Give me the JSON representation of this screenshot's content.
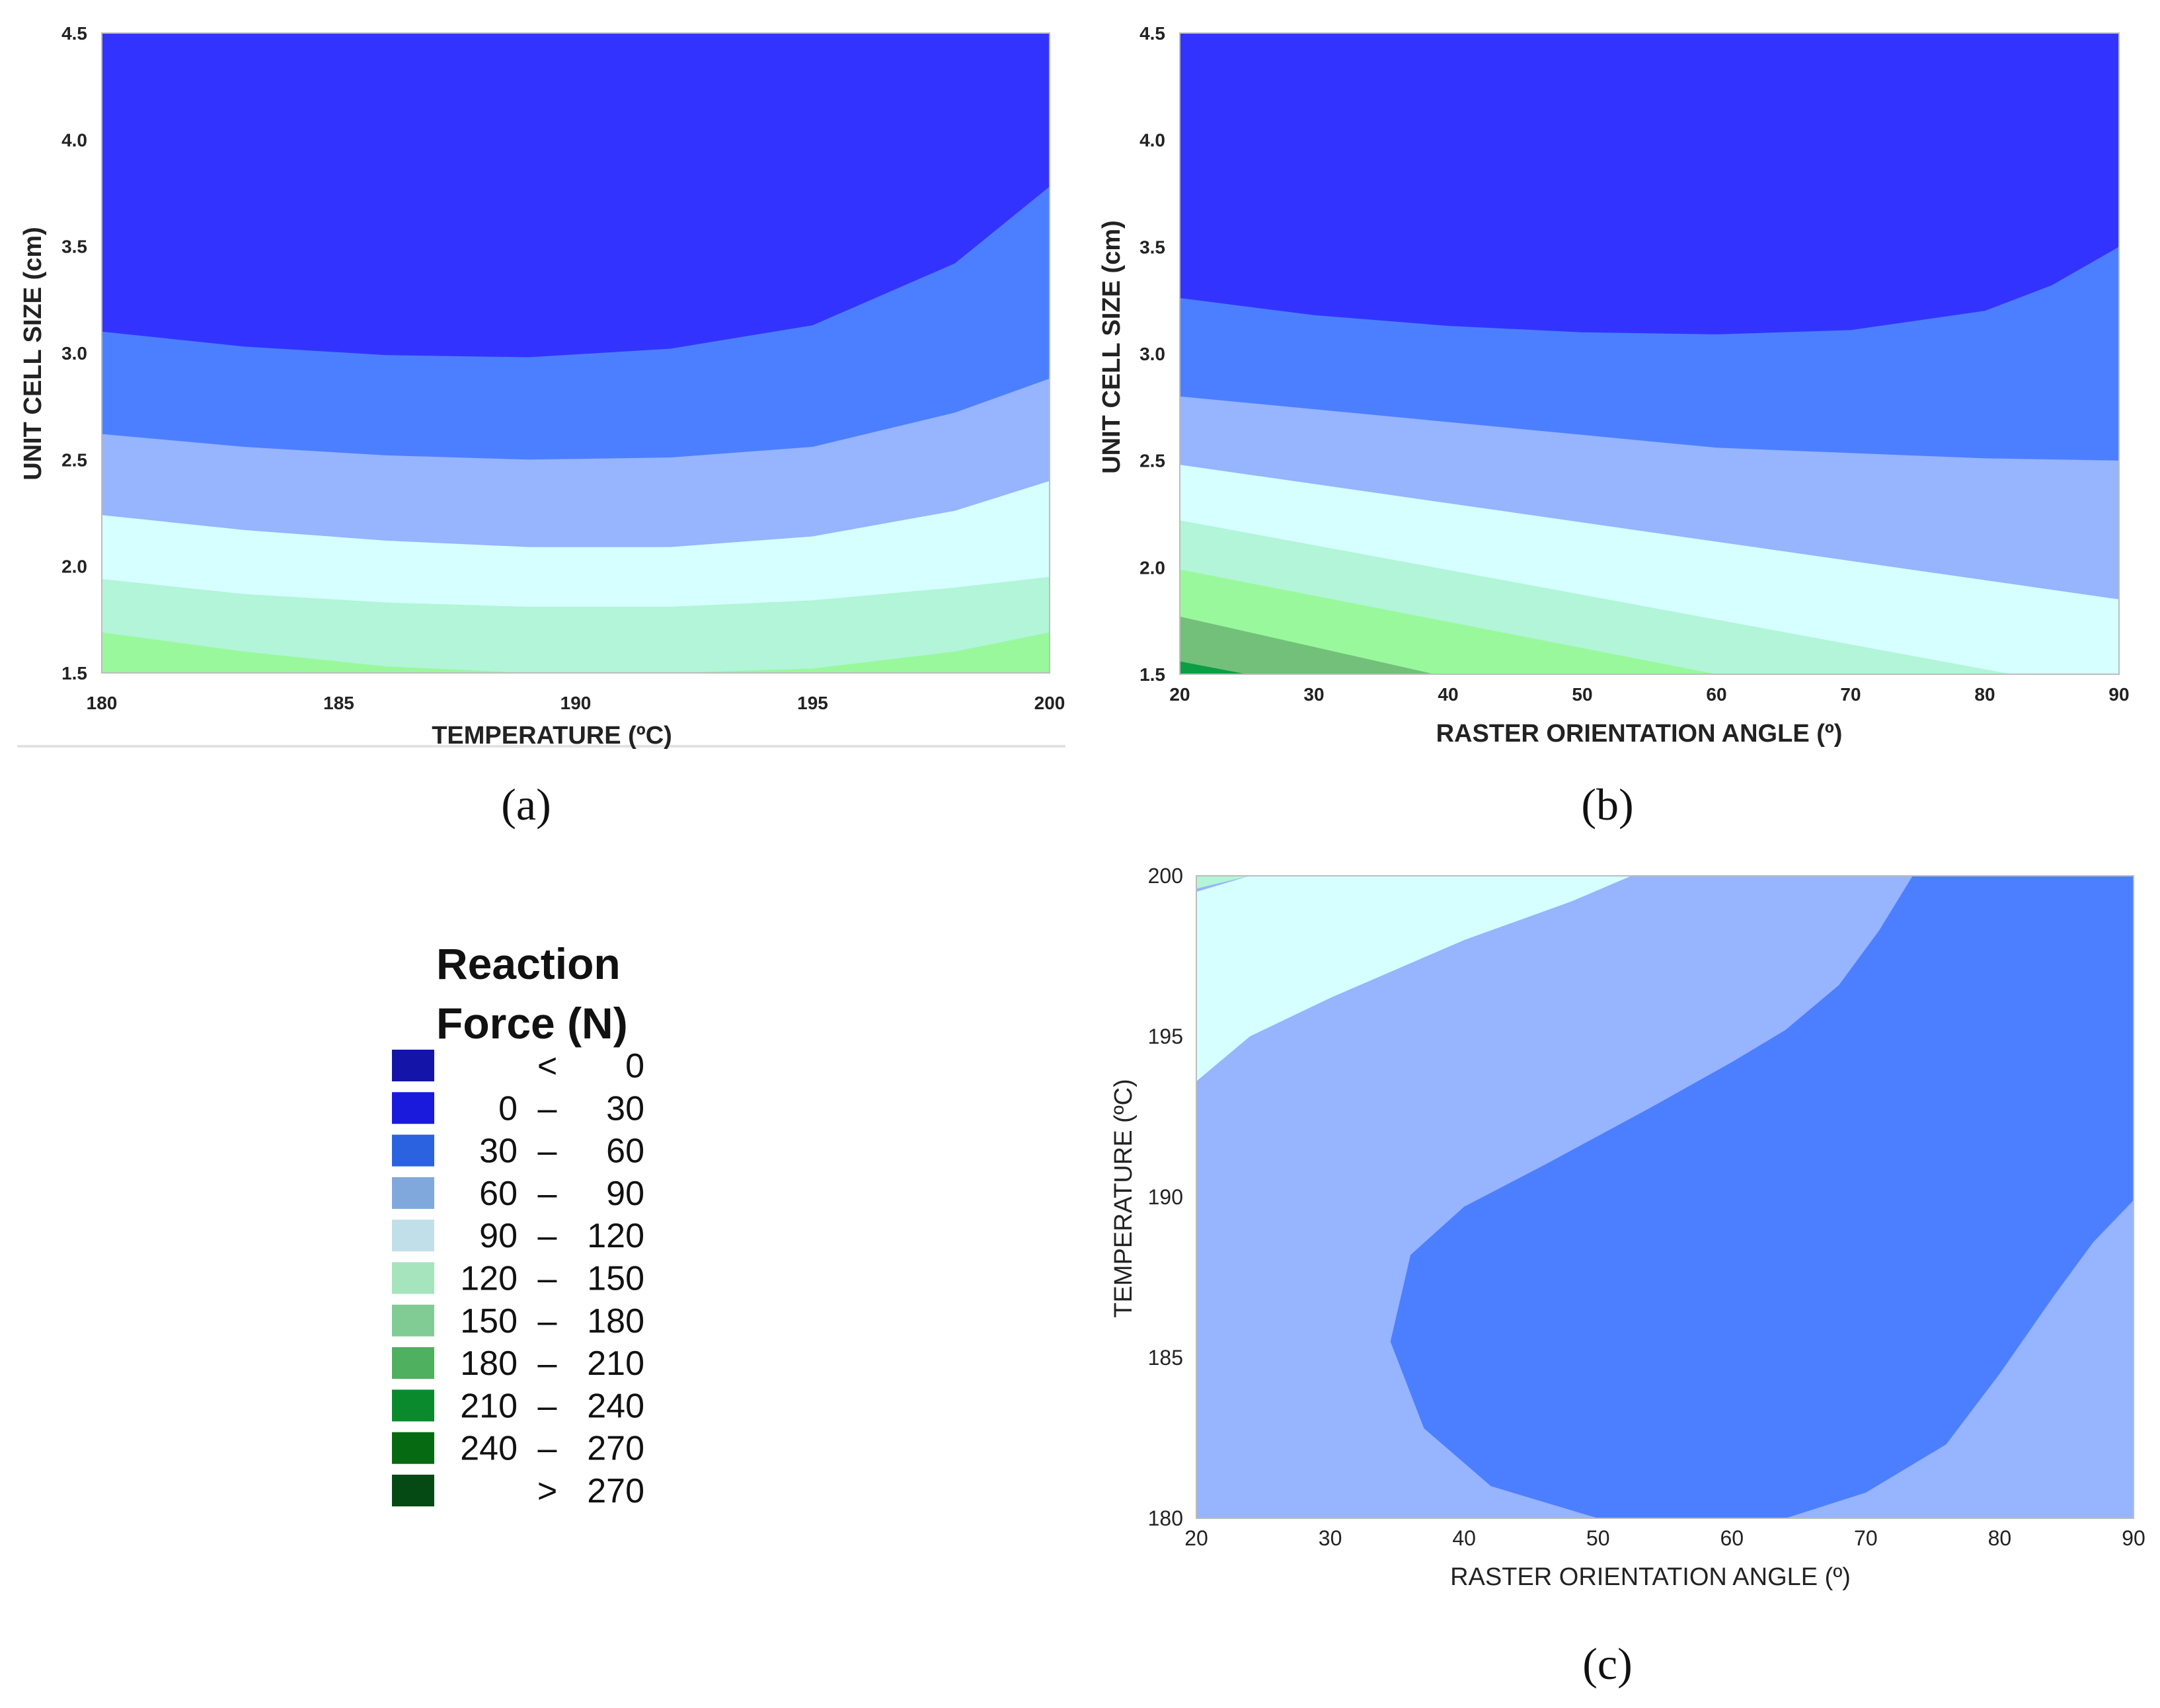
{
  "legend": {
    "title_line1": "Reaction",
    "title_line2": "Force (N)",
    "entries": [
      {
        "lo": "",
        "sep": "<",
        "hi": "0",
        "color": "#1414a8"
      },
      {
        "lo": "0",
        "sep": "–",
        "hi": "30",
        "color": "#1a1adc"
      },
      {
        "lo": "30",
        "sep": "–",
        "hi": "60",
        "color": "#2a62e0"
      },
      {
        "lo": "60",
        "sep": "–",
        "hi": "90",
        "color": "#80a8dc"
      },
      {
        "lo": "90",
        "sep": "–",
        "hi": "120",
        "color": "#c0dfe9"
      },
      {
        "lo": "120",
        "sep": "–",
        "hi": "150",
        "color": "#a6e4be"
      },
      {
        "lo": "150",
        "sep": "–",
        "hi": "180",
        "color": "#80cc94"
      },
      {
        "lo": "180",
        "sep": "–",
        "hi": "210",
        "color": "#4fb060"
      },
      {
        "lo": "210",
        "sep": "–",
        "hi": "240",
        "color": "#0a8a2c"
      },
      {
        "lo": "240",
        "sep": "–",
        "hi": "270",
        "color": "#066a12"
      },
      {
        "lo": "",
        "sep": ">",
        "hi": "270",
        "color": "#054a14"
      }
    ]
  },
  "chart_data": [
    {
      "id": "a",
      "panel_label": "(a)",
      "type": "contour",
      "xlabel": "TEMPERATURE (ºC)",
      "ylabel": "UNIT CELL SIZE (cm)",
      "xlim": [
        180,
        200
      ],
      "ylim": [
        1.5,
        4.5
      ],
      "x_ticks": [
        "180",
        "185",
        "190",
        "195",
        "200"
      ],
      "y_ticks": [
        "1.5",
        "2.0",
        "2.5",
        "3.0",
        "3.5",
        "4.0",
        "4.5"
      ],
      "level_colors": [
        "#3333ff",
        "#4c7fff",
        "#96b4ff",
        "#d6ffff",
        "#b2f5d8",
        "#99f89c"
      ],
      "bands": [
        {
          "range": "0 – 30",
          "color": "#3333ff",
          "upper": [
            [
              180,
              4.5
            ],
            [
              200,
              4.5
            ]
          ]
        },
        {
          "range": "30 – 60",
          "color": "#4c7fff",
          "upper": [
            [
              180,
              3.1
            ],
            [
              183,
              3.03
            ],
            [
              186,
              2.99
            ],
            [
              189,
              2.98
            ],
            [
              192,
              3.02
            ],
            [
              195,
              3.13
            ],
            [
              198,
              3.42
            ],
            [
              200,
              3.78
            ]
          ]
        },
        {
          "range": "60 – 90",
          "color": "#96b4ff",
          "upper": [
            [
              180,
              2.62
            ],
            [
              183,
              2.56
            ],
            [
              186,
              2.52
            ],
            [
              189,
              2.5
            ],
            [
              192,
              2.51
            ],
            [
              195,
              2.56
            ],
            [
              198,
              2.72
            ],
            [
              200,
              2.88
            ]
          ]
        },
        {
          "range": "90 – 120",
          "color": "#d6ffff",
          "upper": [
            [
              180,
              2.24
            ],
            [
              183,
              2.17
            ],
            [
              186,
              2.12
            ],
            [
              189,
              2.09
            ],
            [
              192,
              2.09
            ],
            [
              195,
              2.14
            ],
            [
              198,
              2.26
            ],
            [
              200,
              2.4
            ]
          ]
        },
        {
          "range": "120 – 150",
          "color": "#b2f5d8",
          "upper": [
            [
              180,
              1.94
            ],
            [
              183,
              1.87
            ],
            [
              186,
              1.83
            ],
            [
              189,
              1.81
            ],
            [
              192,
              1.81
            ],
            [
              195,
              1.84
            ],
            [
              198,
              1.9
            ],
            [
              200,
              1.95
            ]
          ]
        },
        {
          "range": "150 – 180",
          "color": "#99f89c",
          "upper": [
            [
              180,
              1.69
            ],
            [
              183,
              1.6
            ],
            [
              186,
              1.53
            ],
            [
              189,
              1.5
            ],
            [
              192,
              1.5
            ],
            [
              195,
              1.52
            ],
            [
              198,
              1.6
            ],
            [
              200,
              1.69
            ]
          ]
        }
      ]
    },
    {
      "id": "b",
      "panel_label": "(b)",
      "type": "contour",
      "xlabel": "RASTER ORIENTATION ANGLE (º)",
      "ylabel": "UNIT CELL SIZE (cm)",
      "xlim": [
        20,
        90
      ],
      "ylim": [
        1.5,
        4.5
      ],
      "x_ticks": [
        "20",
        "30",
        "40",
        "50",
        "60",
        "70",
        "80",
        "90"
      ],
      "y_ticks": [
        "1.5",
        "2.0",
        "2.5",
        "3.0",
        "3.5",
        "4.0",
        "4.5"
      ],
      "level_colors": [
        "#3333ff",
        "#4c7fff",
        "#96b4ff",
        "#d6ffff",
        "#b2f5d8",
        "#99f89c",
        "#73c07a",
        "#0b9e45"
      ],
      "bands": [
        {
          "range": "0 – 30",
          "color": "#3333ff",
          "upper": [
            [
              20,
              4.5
            ],
            [
              90,
              4.5
            ]
          ]
        },
        {
          "range": "30 – 60",
          "color": "#4c7fff",
          "upper": [
            [
              20,
              3.26
            ],
            [
              30,
              3.18
            ],
            [
              40,
              3.13
            ],
            [
              50,
              3.1
            ],
            [
              60,
              3.09
            ],
            [
              70,
              3.11
            ],
            [
              80,
              3.2
            ],
            [
              85,
              3.32
            ],
            [
              90,
              3.5
            ]
          ]
        },
        {
          "range": "60 – 90",
          "color": "#96b4ff",
          "upper": [
            [
              20,
              2.8
            ],
            [
              40,
              2.68
            ],
            [
              60,
              2.56
            ],
            [
              80,
              2.51
            ],
            [
              90,
              2.5
            ]
          ]
        },
        {
          "range": "90 – 120",
          "color": "#d6ffff",
          "upper": [
            [
              20,
              2.48
            ],
            [
              90,
              1.85
            ]
          ]
        },
        {
          "range": "120 – 150",
          "color": "#b2f5d8",
          "upper": [
            [
              20,
              2.22
            ],
            [
              82,
              1.5
            ]
          ]
        },
        {
          "range": "150 – 180",
          "color": "#99f89c",
          "upper": [
            [
              20,
              1.99
            ],
            [
              60,
              1.5
            ]
          ]
        },
        {
          "range": "180 – 210",
          "color": "#73c07a",
          "upper": [
            [
              20,
              1.77
            ],
            [
              39,
              1.5
            ]
          ]
        },
        {
          "range": "210 – 240",
          "color": "#0b9e45",
          "upper": [
            [
              20,
              1.56
            ],
            [
              25,
              1.5
            ]
          ]
        }
      ]
    },
    {
      "id": "c",
      "panel_label": "(c)",
      "type": "contour",
      "xlabel": "RASTER ORIENTATION ANGLE (º)",
      "ylabel": "TEMPERATURE (ºC)",
      "xlim": [
        20,
        90
      ],
      "ylim": [
        180,
        200
      ],
      "x_ticks": [
        "20",
        "30",
        "40",
        "50",
        "60",
        "70",
        "80",
        "90"
      ],
      "y_ticks": [
        "180",
        "185",
        "190",
        "195",
        "200"
      ],
      "background_color": "#96b4ff",
      "regions": [
        {
          "range": "120 – 150",
          "color": "#b2f5d8",
          "polygon": [
            [
              20,
              200
            ],
            [
              24,
              200
            ],
            [
              20,
              199.6
            ]
          ]
        },
        {
          "range": "90 – 120",
          "color": "#d6ffff",
          "polygon": [
            [
              20,
              199.5
            ],
            [
              24,
              200
            ],
            [
              52.5,
              200
            ],
            [
              48,
              199.2
            ],
            [
              40,
              198.0
            ],
            [
              30,
              196.2
            ],
            [
              24,
              195.0
            ],
            [
              20,
              193.6
            ]
          ]
        },
        {
          "range": "30 – 60",
          "color": "#4c7fff",
          "polygon": [
            [
              73.5,
              200
            ],
            [
              90,
              200
            ],
            [
              90,
              189.9
            ],
            [
              87,
              188.6
            ],
            [
              84,
              186.9
            ],
            [
              80,
              184.5
            ],
            [
              76,
              182.3
            ],
            [
              70,
              180.8
            ],
            [
              64,
              180
            ],
            [
              50,
              180
            ],
            [
              42,
              181.0
            ],
            [
              37,
              182.8
            ],
            [
              34.5,
              185.5
            ],
            [
              36,
              188.2
            ],
            [
              40,
              189.7
            ],
            [
              46,
              191.0
            ],
            [
              54,
              192.8
            ],
            [
              60,
              194.2
            ],
            [
              64,
              195.2
            ],
            [
              68,
              196.6
            ],
            [
              71,
              198.3
            ]
          ]
        }
      ]
    }
  ]
}
